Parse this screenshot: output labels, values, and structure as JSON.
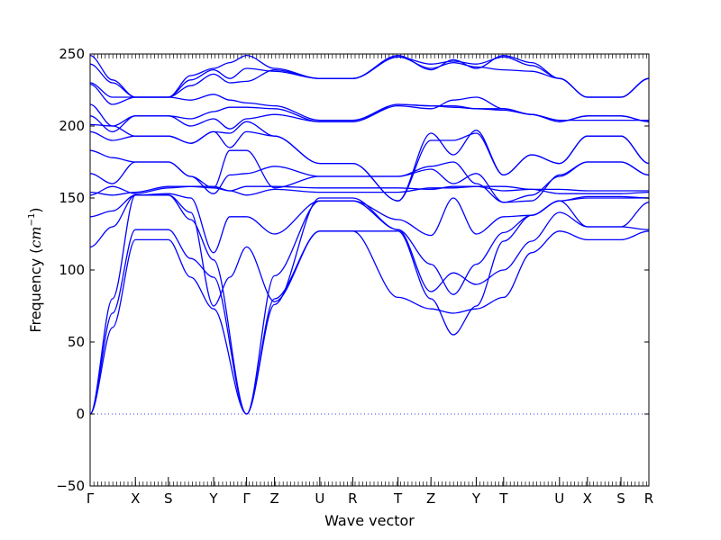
{
  "chart_data": {
    "type": "line",
    "title": "",
    "xlabel": "Wave vector",
    "ylabel": "Frequency",
    "ylabel_unit_prefix": "cm",
    "ylabel_unit_exponent": "−1",
    "ylim": [
      -50,
      250
    ],
    "xlim": [
      0,
      100
    ],
    "y_ticks": [
      -50,
      0,
      50,
      100,
      150,
      200,
      250
    ],
    "y_tick_labels": [
      "−50",
      "0",
      "50",
      "100",
      "150",
      "200",
      "250"
    ],
    "grid": false,
    "zero_line": {
      "y": 0,
      "style": "dotted"
    },
    "line_color": "#0000ff",
    "high_symmetry_points": [
      {
        "label": "Γ",
        "x": 0
      },
      {
        "label": "X",
        "x": 8.1
      },
      {
        "label": "S",
        "x": 14.0
      },
      {
        "label": "Y",
        "x": 22.1
      },
      {
        "label": "Γ",
        "x": 28.0
      },
      {
        "label": "Z",
        "x": 33.0
      },
      {
        "label": "U",
        "x": 41.1
      },
      {
        "label": "R",
        "x": 47.0
      },
      {
        "label": "T",
        "x": 55.1
      },
      {
        "label": "Z",
        "x": 61.0
      },
      {
        "label": "Y",
        "x": 69.1
      },
      {
        "label": "T",
        "x": 74.0
      },
      {
        "label": "U",
        "x": 84.0
      },
      {
        "label": "X",
        "x": 89.0
      },
      {
        "label": "S",
        "x": 95.0
      },
      {
        "label": "R",
        "x": 100.0
      }
    ],
    "series": [
      {
        "x": [
          0,
          4,
          8.1,
          14,
          18,
          22.1,
          28,
          33,
          41.1,
          47,
          55.1,
          61,
          65,
          69.1,
          74,
          79,
          84,
          89,
          95,
          100
        ],
        "values": [
          0,
          60,
          121,
          121,
          95,
          73,
          0,
          80,
          127,
          127,
          81,
          73,
          70,
          73,
          81,
          112,
          127,
          121,
          121,
          127
        ]
      },
      {
        "x": [
          0,
          4,
          8.1,
          14,
          18,
          22.1,
          28,
          33,
          41.1,
          47,
          55.1,
          61,
          65,
          69.1,
          74,
          79,
          84,
          89,
          95,
          100
        ],
        "values": [
          0,
          70,
          128,
          128,
          108,
          95,
          0,
          96,
          148,
          148,
          128,
          85,
          98,
          90,
          100,
          120,
          140,
          130,
          130,
          147
        ]
      },
      {
        "x": [
          0,
          4,
          8.1,
          14,
          18,
          22.1,
          28,
          33,
          41.1,
          47,
          55.1,
          61,
          65,
          69.1,
          74,
          79,
          84,
          89,
          95,
          100
        ],
        "values": [
          0,
          80,
          152,
          152,
          135,
          107,
          0,
          76,
          150,
          150,
          128,
          104,
          83,
          104,
          126,
          138,
          148,
          150,
          150,
          150
        ]
      },
      {
        "x": [
          0,
          4,
          8.1,
          14,
          18,
          22.1,
          25,
          28,
          33,
          41.1,
          47,
          55.1,
          61,
          65,
          69.1,
          74,
          79,
          84,
          89,
          95,
          100
        ],
        "values": [
          116,
          130,
          152,
          152,
          140,
          75,
          95,
          116,
          78,
          127,
          127,
          127,
          80,
          55,
          75,
          120,
          138,
          148,
          130,
          130,
          128
        ]
      },
      {
        "x": [
          0,
          4,
          8.1,
          14,
          18,
          22.1,
          25,
          28,
          33,
          41.1,
          47,
          55.1,
          61,
          65,
          69.1,
          74,
          79,
          84,
          89,
          95,
          100
        ],
        "values": [
          137,
          141,
          152,
          153,
          150,
          112,
          137,
          137,
          125,
          148,
          148,
          135,
          124,
          150,
          125,
          137,
          138,
          148,
          151,
          151,
          150
        ]
      },
      {
        "x": [
          0,
          4,
          8.1,
          14,
          18,
          22.1,
          25,
          28,
          33,
          41.1,
          47,
          55.1,
          61,
          65,
          69.1,
          74,
          79,
          84,
          89,
          95,
          100
        ],
        "values": [
          152,
          158,
          153,
          157,
          158,
          158,
          155,
          152,
          156,
          154,
          154,
          154,
          157,
          157,
          158,
          155,
          156,
          153,
          153,
          153,
          154
        ]
      },
      {
        "x": [
          0,
          4,
          8.1,
          14,
          18,
          22.1,
          25,
          28,
          33,
          41.1,
          47,
          55.1,
          61,
          65,
          69.1,
          74,
          79,
          84,
          89,
          95,
          100
        ],
        "values": [
          154,
          152,
          154,
          158,
          158,
          157,
          155,
          158,
          158,
          157,
          157,
          157,
          156,
          158,
          158,
          158,
          156,
          156,
          155,
          155,
          155
        ]
      },
      {
        "x": [
          0,
          4,
          8.1,
          14,
          18,
          22.1,
          25,
          28,
          33,
          41.1,
          47,
          55.1,
          61,
          65,
          69.1,
          74,
          79,
          84,
          89,
          95,
          100
        ],
        "values": [
          167,
          160,
          175,
          175,
          165,
          153,
          166,
          167,
          172,
          165,
          165,
          165,
          170,
          160,
          167,
          147,
          152,
          165,
          175,
          175,
          166
        ]
      },
      {
        "x": [
          0,
          4,
          8.1,
          14,
          18,
          22.1,
          25,
          28,
          33,
          41.1,
          47,
          55.1,
          61,
          65,
          69.1,
          74,
          79,
          84,
          89,
          95,
          100
        ],
        "values": [
          183,
          178,
          175,
          175,
          165,
          157,
          183,
          183,
          157,
          165,
          165,
          165,
          172,
          175,
          160,
          147,
          148,
          166,
          175,
          175,
          166
        ]
      },
      {
        "x": [
          0,
          4,
          8.1,
          14,
          18,
          22.1,
          25,
          28,
          33,
          41.1,
          47,
          55.1,
          61,
          65,
          69.1,
          74,
          79,
          84,
          89,
          95,
          100
        ],
        "values": [
          196,
          190,
          193,
          193,
          188,
          196,
          185,
          196,
          193,
          174,
          174,
          148,
          195,
          180,
          197,
          166,
          180,
          174,
          193,
          193,
          174
        ]
      },
      {
        "x": [
          0,
          4,
          8.1,
          14,
          18,
          22.1,
          25,
          28,
          33,
          41.1,
          47,
          55.1,
          61,
          65,
          69.1,
          74,
          79,
          84,
          89,
          95,
          100
        ],
        "values": [
          201,
          200,
          193,
          193,
          188,
          196,
          195,
          203,
          193,
          174,
          174,
          148,
          190,
          190,
          195,
          166,
          180,
          174,
          193,
          193,
          174
        ]
      },
      {
        "x": [
          0,
          4,
          8.1,
          14,
          18,
          22.1,
          25,
          28,
          33,
          41.1,
          47,
          55.1,
          61,
          65,
          69.1,
          74,
          79,
          84,
          89,
          95,
          100
        ],
        "values": [
          207,
          196,
          207,
          207,
          200,
          205,
          198,
          205,
          208,
          203,
          203,
          215,
          214,
          214,
          212,
          212,
          208,
          203,
          207,
          207,
          203
        ]
      },
      {
        "x": [
          0,
          4,
          8.1,
          14,
          18,
          22.1,
          25,
          28,
          33,
          41.1,
          47,
          55.1,
          61,
          65,
          69.1,
          74,
          79,
          84,
          89,
          95,
          100
        ],
        "values": [
          215,
          200,
          207,
          207,
          205,
          210,
          213,
          213,
          212,
          203,
          203,
          214,
          212,
          218,
          220,
          212,
          208,
          203,
          207,
          207,
          203
        ]
      },
      {
        "x": [
          0,
          4,
          8.1,
          14,
          18,
          22.1,
          25,
          28,
          33,
          41.1,
          47,
          55.1,
          61,
          65,
          69.1,
          74,
          79,
          84,
          89,
          95,
          100
        ],
        "values": [
          229,
          215,
          220,
          220,
          218,
          222,
          218,
          216,
          214,
          204,
          204,
          215,
          214,
          213,
          212,
          211,
          208,
          204,
          204,
          204,
          204
        ]
      },
      {
        "x": [
          0,
          4,
          8.1,
          14,
          18,
          22.1,
          25,
          28,
          33,
          41.1,
          47,
          55.1,
          61,
          65,
          69.1,
          74,
          79,
          84,
          89,
          95,
          100
        ],
        "values": [
          230,
          220,
          220,
          220,
          228,
          236,
          230,
          231,
          239,
          233,
          233,
          248,
          240,
          244,
          241,
          239,
          238,
          233,
          220,
          220,
          233
        ]
      },
      {
        "x": [
          0,
          4,
          8.1,
          14,
          18,
          22.1,
          25,
          28,
          33,
          41.1,
          47,
          55.1,
          61,
          65,
          69.1,
          74,
          79,
          84,
          89,
          95,
          100
        ],
        "values": [
          243,
          230,
          220,
          220,
          232,
          239,
          233,
          240,
          238,
          233,
          233,
          248,
          243,
          245,
          243,
          248,
          242,
          233,
          220,
          220,
          233
        ]
      },
      {
        "x": [
          0,
          4,
          8.1,
          14,
          18,
          22.1,
          25,
          28,
          33,
          41.1,
          47,
          55.1,
          61,
          65,
          69.1,
          74,
          79,
          84,
          89,
          95,
          100
        ],
        "values": [
          249,
          232,
          220,
          220,
          235,
          240,
          244,
          249,
          240,
          233,
          233,
          249,
          239,
          246,
          240,
          249,
          244,
          233,
          220,
          220,
          233
        ]
      }
    ]
  }
}
